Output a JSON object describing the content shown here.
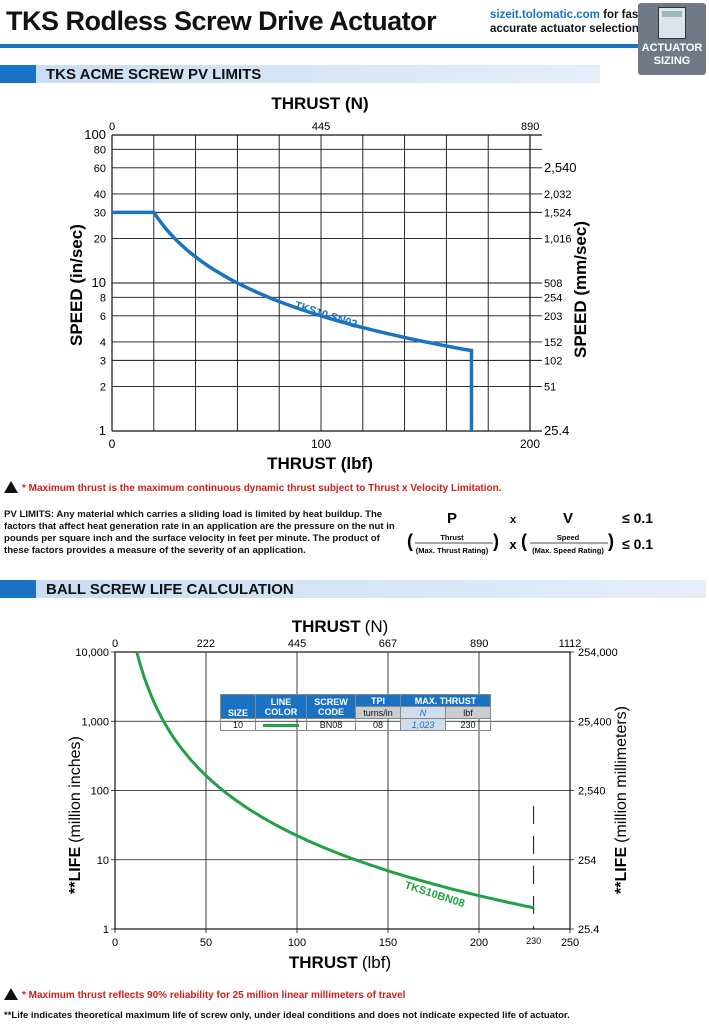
{
  "header": {
    "title": "TKS Rodless Screw Drive Actuator",
    "link_url": "sizeit.tolomatic.com",
    "link_text1": " for fast,",
    "link_text2": "accurate actuator selection",
    "badge_line1": "ACTUATOR",
    "badge_line2": "SIZING"
  },
  "sections": {
    "pv": "TKS ACME SCREW PV LIMITS",
    "ball": "BALL SCREW LIFE CALCULATION"
  },
  "colors": {
    "accent": "#1a73c2",
    "pv_curve": "#1a73c2",
    "life_curve": "#22a046",
    "warning": "#d0201a"
  },
  "pv_chart": {
    "top_axis_title": "THRUST (N)",
    "top_ticks": [
      "0",
      "445",
      "890"
    ],
    "bottom_axis_title": "THRUST (lbf)",
    "bottom_ticks": [
      "0",
      "100",
      "200"
    ],
    "left_axis_title": "SPEED (in/sec)",
    "left_ticks": [
      "1",
      "2",
      "3",
      "4",
      "6",
      "8",
      "10",
      "20",
      "30",
      "40",
      "60",
      "80",
      "100"
    ],
    "right_axis_title": "SPEED (mm/sec)",
    "right_ticks": [
      "25.4",
      "51",
      "102",
      "152",
      "203",
      "254",
      "508",
      "1,016",
      "1,524",
      "2,032",
      "2,540"
    ],
    "curve_label": "TKS10 SN02"
  },
  "pv_note": "* Maximum thrust is the maximum continuous dynamic thrust subject to Thrust x Velocity Limitation.",
  "pv_text": "PV LIMITS: Any material which carries a sliding load is limited by heat buildup. The factors that affect heat generation rate in an application are the pressure on the nut in pounds per square inch and the surface velocity in feet per minute. The product of these factors provides a measure of the severity of an application.",
  "formula": {
    "p": "P",
    "x": "x",
    "v": "V",
    "le": "≤ 0.1",
    "thrust": "Thrust",
    "max_thrust": "(Max. Thrust Rating)",
    "speed": "Speed",
    "max_speed": "(Max. Speed Rating)"
  },
  "life_chart": {
    "top_axis_title": "THRUST",
    "top_axis_unit": "(N)",
    "top_ticks": [
      "0",
      "222",
      "445",
      "667",
      "890",
      "1112"
    ],
    "bottom_axis_title": "THRUST",
    "bottom_axis_unit": "(lbf)",
    "bottom_ticks": [
      "0",
      "50",
      "100",
      "150",
      "200",
      "250"
    ],
    "bottom_extra_tick": "230",
    "left_axis_title": "**LIFE",
    "left_axis_unit": "(million inches)",
    "left_ticks": [
      "1",
      "10",
      "100",
      "1,000",
      "10,000"
    ],
    "right_axis_title": "**LIFE",
    "right_axis_unit": "(million millimeters)",
    "right_ticks": [
      "25.4",
      "254",
      "2,540",
      "25,400",
      "254,000"
    ],
    "curve_label": "TKS10BN08"
  },
  "table": {
    "headers": [
      "SIZE",
      "LINE COLOR",
      "SCREW CODE",
      "TPI",
      "MAX. THRUST"
    ],
    "sub": [
      "turns/in",
      "N",
      "lbf"
    ],
    "row": [
      "10",
      "BN08",
      "08",
      "1,023",
      "230"
    ]
  },
  "life_note": "* Maximum thrust reflects 90% reliability for 25 million linear millimeters of travel",
  "life_footer": "**Life indicates theoretical maximum life of screw only, under ideal conditions and does not indicate expected life of actuator.",
  "chart_data": [
    {
      "type": "line",
      "x_label": "THRUST (lbf)",
      "y_label": "SPEED (in/sec)",
      "y_scale": "log",
      "xlim": [
        0,
        200
      ],
      "ylim": [
        1,
        100
      ],
      "series": [
        {
          "name": "TKS10 SN02",
          "x": [
            0,
            20,
            30,
            40,
            60,
            80,
            100,
            120,
            140,
            172,
            172
          ],
          "y": [
            30,
            30,
            20,
            15,
            10,
            7.5,
            6,
            5,
            4.3,
            3.5,
            1
          ]
        }
      ]
    },
    {
      "type": "line",
      "x_label": "THRUST (lbf)",
      "y_label": "LIFE (million inches)",
      "y_scale": "log",
      "xlim": [
        0,
        250
      ],
      "ylim": [
        1,
        10000
      ],
      "series": [
        {
          "name": "TKS10BN08",
          "x": [
            12,
            25,
            50,
            75,
            100,
            125,
            150,
            175,
            200,
            230
          ],
          "y": [
            10000,
            1400,
            180,
            55,
            23,
            12,
            6,
            3.3,
            1.9,
            1.1
          ]
        }
      ]
    }
  ]
}
